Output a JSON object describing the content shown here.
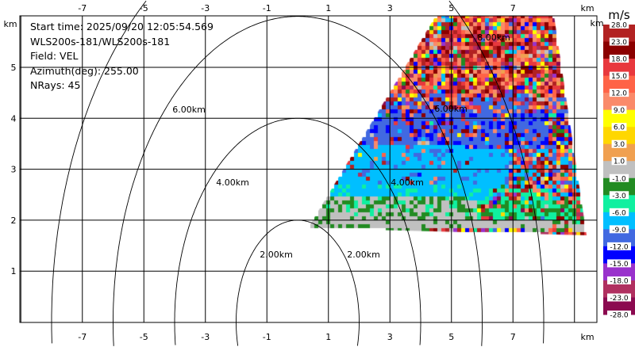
{
  "info": {
    "start_time": "Start time: 2025/09/20 12:05:54.569",
    "instrument": "WLS200s-181/WLS200s-181",
    "field": "Field: VEL",
    "azimuth": "Azimuth(deg): 255.00",
    "nrays": "NRays: 45"
  },
  "chart_data": {
    "type": "heatmap",
    "title": "",
    "xlabel": "km",
    "ylabel": "km",
    "x_ticks": [
      "-7",
      "-5",
      "-3",
      "-1",
      "1",
      "3",
      "5",
      "7"
    ],
    "x_tick_values": [
      -7,
      -5,
      -3,
      -1,
      1,
      3,
      5,
      7
    ],
    "y_ticks": [
      "1",
      "2",
      "3",
      "4",
      "5"
    ],
    "y_tick_values": [
      1,
      2,
      3,
      4,
      5
    ],
    "xlim": [
      -9,
      9.7
    ],
    "ylim": [
      0,
      5.35
    ],
    "grid": true,
    "range_rings": [
      {
        "km": 2,
        "label": "2.00km"
      },
      {
        "km": 4,
        "label": "4.00km"
      },
      {
        "km": 6,
        "label": "6.00km"
      },
      {
        "km": 8,
        "label": "8.00km"
      }
    ],
    "colorbar": {
      "unit": "m/s",
      "labels": [
        "28.0",
        "23.0",
        "18.0",
        "15.0",
        "12.0",
        "9.0",
        "6.0",
        "3.0",
        "1.0",
        "-1.0",
        "-3.0",
        "-6.0",
        "-9.0",
        "-12.0",
        "-15.0",
        "-18.0",
        "-23.0",
        "-28.0"
      ],
      "colors": [
        "#b22222",
        "#8b0000",
        "#e8383d",
        "#ff6347",
        "#fa8a6a",
        "#ffff00",
        "#ffd700",
        "#f0a050",
        "#c0c0c0",
        "#228b22",
        "#10f0a0",
        "#00bfff",
        "#4169e1",
        "#0000ff",
        "#9932cc",
        "#b03060",
        "#8b0a50"
      ]
    }
  }
}
